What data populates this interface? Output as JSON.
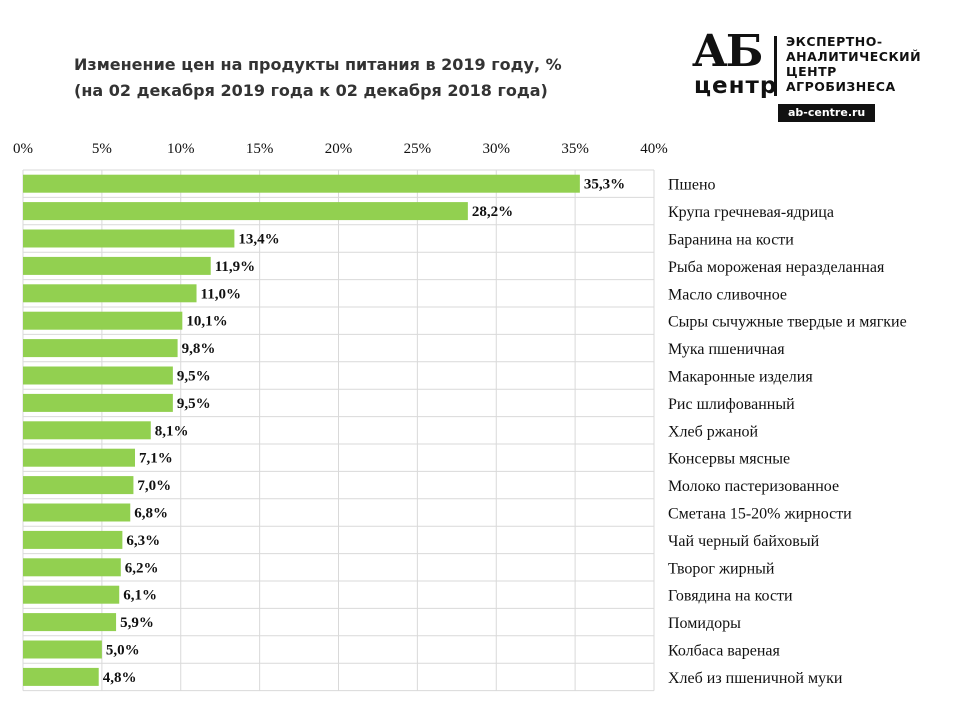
{
  "chart_data": {
    "type": "bar",
    "orientation": "horizontal",
    "title": "Изменение цен на продукты питания в 2019 году, %",
    "subtitle": "(на 02 декабря 2019 года к 02 декабря 2018 года)",
    "xlim": [
      0,
      40
    ],
    "xticks": [
      0,
      5,
      10,
      15,
      20,
      25,
      30,
      35,
      40
    ],
    "xtick_labels": [
      "0%",
      "5%",
      "10%",
      "15%",
      "20%",
      "25%",
      "30%",
      "35%",
      "40%"
    ],
    "x_axis_position": "top",
    "grid": true,
    "bar_color": "#92d050",
    "categories": [
      "Пшено",
      "Крупа гречневая-ядрица",
      "Баранина на кости",
      "Рыба мороженая неразделанная",
      "Масло сливочное",
      "Сыры сычужные твердые и мягкие",
      "Мука пшеничная",
      "Макаронные изделия",
      "Рис шлифованный",
      "Хлеб ржаной",
      "Консервы мясные",
      "Молоко пастеризованное",
      "Сметана 15-20% жирности",
      "Чай черный байховый",
      "Творог жирный",
      "Говядина на кости",
      "Помидоры",
      "Колбаса вареная",
      "Хлеб из пшеничной муки"
    ],
    "values": [
      35.3,
      28.2,
      13.4,
      11.9,
      11.0,
      10.1,
      9.8,
      9.5,
      9.5,
      8.1,
      7.1,
      7.0,
      6.8,
      6.3,
      6.2,
      6.1,
      5.9,
      5.0,
      4.8
    ],
    "value_labels": [
      "35,3%",
      "28,2%",
      "13,4%",
      "11,9%",
      "11,0%",
      "10,1%",
      "9,8%",
      "9,5%",
      "9,5%",
      "8,1%",
      "7,1%",
      "7,0%",
      "6,8%",
      "6,3%",
      "6,2%",
      "6,1%",
      "5,9%",
      "5,0%",
      "4,8%"
    ]
  },
  "logo": {
    "letters": "АБ",
    "center": "центр",
    "lines": [
      "ЭКСПЕРТНО-",
      "АНАЛИТИЧЕСКИЙ",
      "ЦЕНТР",
      "АГРОБИЗНЕСА"
    ],
    "url": "ab-centre.ru"
  }
}
